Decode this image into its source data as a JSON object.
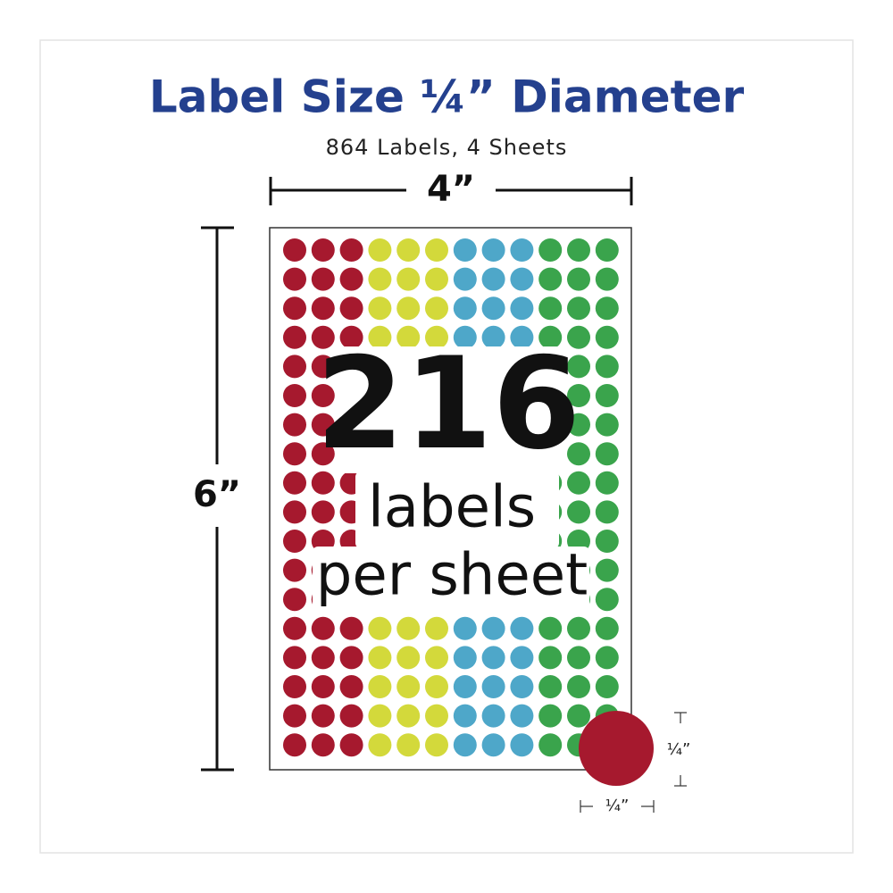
{
  "header": {
    "title": "Label Size ¼” Diameter",
    "subtitle": "864 Labels, 4 Sheets"
  },
  "dimensions": {
    "width": "4”",
    "height": "6”",
    "label_width": "¼”",
    "label_height": "¼”"
  },
  "badge": {
    "count": "216",
    "line1": "labels",
    "line2": "per sheet"
  }
}
